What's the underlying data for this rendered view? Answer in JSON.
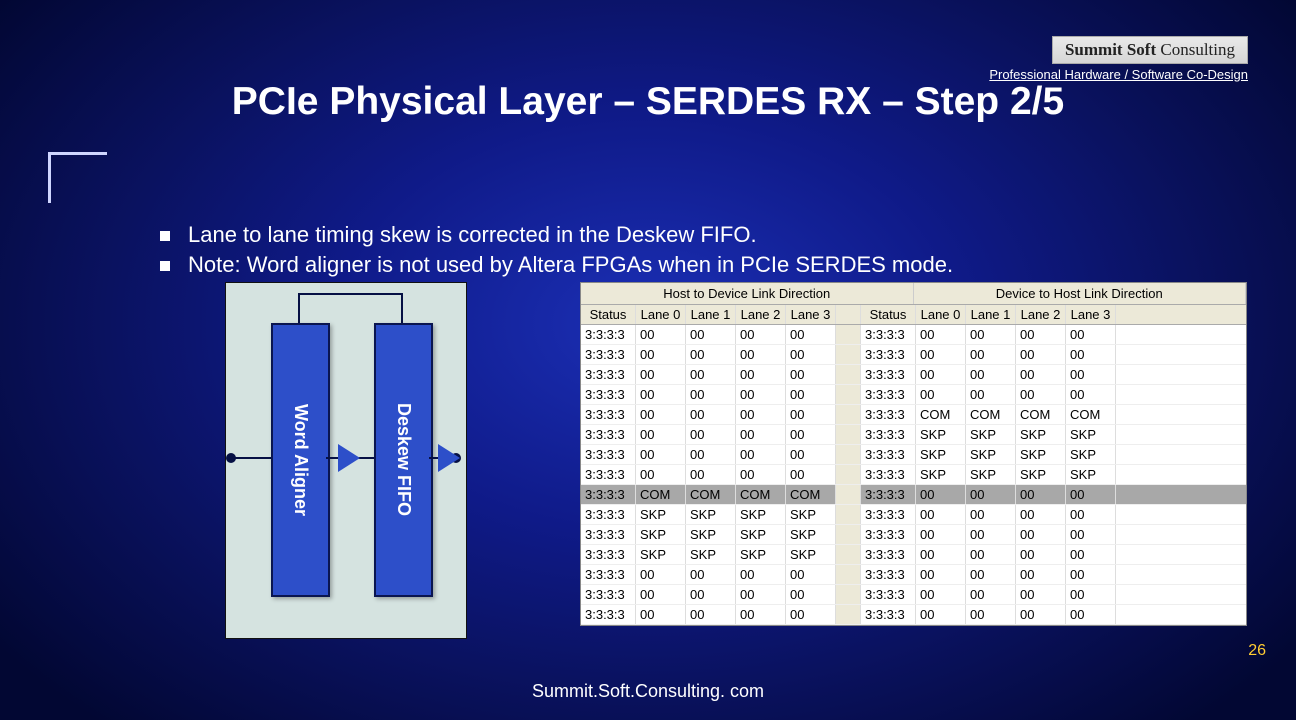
{
  "logo": {
    "line1": "Summit Soft",
    "line2": "Consulting"
  },
  "tagline": "Professional Hardware / Software Co-Design",
  "title": "PCIe Physical Layer – SERDES RX – Step 2/5",
  "bullets": [
    "Lane to lane timing skew is corrected in the Deskew FIFO.",
    "Note: Word aligner is not used by Altera FPGAs when in PCIe SERDES mode."
  ],
  "diagram": {
    "block1": "Word Aligner",
    "block2": "Deskew FIFO",
    "bg_color": "#d5e3e0",
    "block_fill": "#2d4fc9",
    "block_border": "#0a1550"
  },
  "table": {
    "group_headers": [
      "Host to Device Link Direction",
      "Device to Host Link Direction"
    ],
    "columns": [
      "Status",
      "Lane 0",
      "Lane 1",
      "Lane 2",
      "Lane 3",
      "",
      "Status",
      "Lane 0",
      "Lane 1",
      "Lane 2",
      "Lane 3"
    ],
    "highlight_row_index": 8,
    "rows": [
      [
        "3:3:3:3",
        "00",
        "00",
        "00",
        "00",
        "",
        "3:3:3:3",
        "00",
        "00",
        "00",
        "00"
      ],
      [
        "3:3:3:3",
        "00",
        "00",
        "00",
        "00",
        "",
        "3:3:3:3",
        "00",
        "00",
        "00",
        "00"
      ],
      [
        "3:3:3:3",
        "00",
        "00",
        "00",
        "00",
        "",
        "3:3:3:3",
        "00",
        "00",
        "00",
        "00"
      ],
      [
        "3:3:3:3",
        "00",
        "00",
        "00",
        "00",
        "",
        "3:3:3:3",
        "00",
        "00",
        "00",
        "00"
      ],
      [
        "3:3:3:3",
        "00",
        "00",
        "00",
        "00",
        "",
        "3:3:3:3",
        "COM",
        "COM",
        "COM",
        "COM"
      ],
      [
        "3:3:3:3",
        "00",
        "00",
        "00",
        "00",
        "",
        "3:3:3:3",
        "SKP",
        "SKP",
        "SKP",
        "SKP"
      ],
      [
        "3:3:3:3",
        "00",
        "00",
        "00",
        "00",
        "",
        "3:3:3:3",
        "SKP",
        "SKP",
        "SKP",
        "SKP"
      ],
      [
        "3:3:3:3",
        "00",
        "00",
        "00",
        "00",
        "",
        "3:3:3:3",
        "SKP",
        "SKP",
        "SKP",
        "SKP"
      ],
      [
        "3:3:3:3",
        "COM",
        "COM",
        "COM",
        "COM",
        "",
        "3:3:3:3",
        "00",
        "00",
        "00",
        "00"
      ],
      [
        "3:3:3:3",
        "SKP",
        "SKP",
        "SKP",
        "SKP",
        "",
        "3:3:3:3",
        "00",
        "00",
        "00",
        "00"
      ],
      [
        "3:3:3:3",
        "SKP",
        "SKP",
        "SKP",
        "SKP",
        "",
        "3:3:3:3",
        "00",
        "00",
        "00",
        "00"
      ],
      [
        "3:3:3:3",
        "SKP",
        "SKP",
        "SKP",
        "SKP",
        "",
        "3:3:3:3",
        "00",
        "00",
        "00",
        "00"
      ],
      [
        "3:3:3:3",
        "00",
        "00",
        "00",
        "00",
        "",
        "3:3:3:3",
        "00",
        "00",
        "00",
        "00"
      ],
      [
        "3:3:3:3",
        "00",
        "00",
        "00",
        "00",
        "",
        "3:3:3:3",
        "00",
        "00",
        "00",
        "00"
      ],
      [
        "3:3:3:3",
        "00",
        "00",
        "00",
        "00",
        "",
        "3:3:3:3",
        "00",
        "00",
        "00",
        "00"
      ]
    ]
  },
  "footer": "Summit.Soft.Consulting. com",
  "page_number": "26"
}
